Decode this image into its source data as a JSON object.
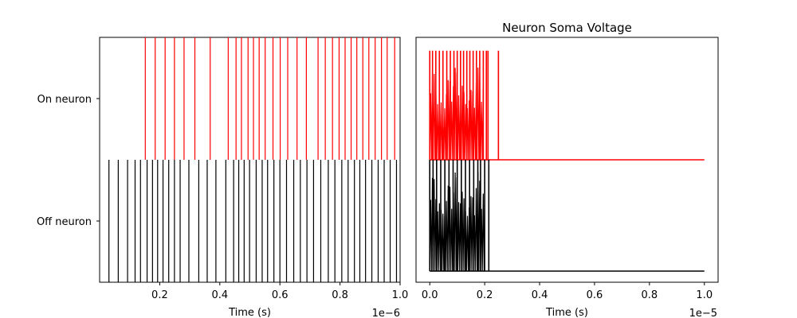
{
  "chart_data": [
    {
      "type": "raster",
      "title": "",
      "xlabel": "Time (s)",
      "ylabel": "",
      "x_offset_label": "1e−6",
      "x_scale": 1e-06,
      "xlim": [
        0.0,
        1.0
      ],
      "xticks": [
        0.2,
        0.4,
        0.6,
        0.8,
        1.0
      ],
      "xtick_labels": [
        "0.2",
        "0.4",
        "0.6",
        "0.8",
        "1.0"
      ],
      "grid": false,
      "series": [
        {
          "name": "On neuron",
          "color": "#ff0000",
          "spike_times": [
            0.152,
            0.185,
            0.218,
            0.249,
            0.281,
            0.317,
            0.368,
            0.428,
            0.454,
            0.472,
            0.494,
            0.512,
            0.531,
            0.551,
            0.577,
            0.601,
            0.626,
            0.657,
            0.688,
            0.727,
            0.751,
            0.775,
            0.797,
            0.817,
            0.837,
            0.856,
            0.876,
            0.896,
            0.917,
            0.938,
            0.957,
            0.982
          ]
        },
        {
          "name": "Off neuron",
          "color": "#000000",
          "spike_times": [
            0.031,
            0.062,
            0.093,
            0.118,
            0.136,
            0.158,
            0.176,
            0.193,
            0.211,
            0.23,
            0.249,
            0.268,
            0.297,
            0.33,
            0.358,
            0.387,
            0.42,
            0.446,
            0.463,
            0.481,
            0.499,
            0.521,
            0.541,
            0.559,
            0.58,
            0.6,
            0.622,
            0.646,
            0.668,
            0.69,
            0.712,
            0.736,
            0.761,
            0.783,
            0.806,
            0.827,
            0.848,
            0.866,
            0.885,
            0.906,
            0.927,
            0.947,
            0.967,
            0.988
          ]
        }
      ]
    },
    {
      "type": "line",
      "title": "Neuron Soma Voltage",
      "xlabel": "Time (s)",
      "ylabel": "",
      "x_offset_label": "1e−5",
      "x_scale": 1e-05,
      "xlim": [
        -0.05,
        1.05
      ],
      "xticks": [
        0.0,
        0.2,
        0.4,
        0.6,
        0.8,
        1.0
      ],
      "xtick_labels": [
        "0.0",
        "0.2",
        "0.4",
        "0.6",
        "0.8",
        "1.0"
      ],
      "ylim": [
        -0.05,
        1.05
      ],
      "yticks": [],
      "grid": false,
      "series": [
        {
          "name": "",
          "color": "#ff0000",
          "baseline": 0.5,
          "band_top": 0.92,
          "band_until": 0.195,
          "spike_times": [
            0.0,
            0.01,
            0.022,
            0.035,
            0.048,
            0.062,
            0.075,
            0.088,
            0.1,
            0.112,
            0.123,
            0.135,
            0.146,
            0.158,
            0.17,
            0.182,
            0.195,
            0.206,
            0.212,
            0.25
          ],
          "spike_peak": 0.99
        },
        {
          "name": "",
          "color": "#000000",
          "baseline": 0.0,
          "band_top": 0.45,
          "band_until": 0.2,
          "spike_times": [
            0.0,
            0.012,
            0.025,
            0.04,
            0.055,
            0.07,
            0.085,
            0.1,
            0.115,
            0.13,
            0.145,
            0.16,
            0.175,
            0.185,
            0.2,
            0.215
          ],
          "spike_peak": 0.5
        }
      ]
    }
  ]
}
